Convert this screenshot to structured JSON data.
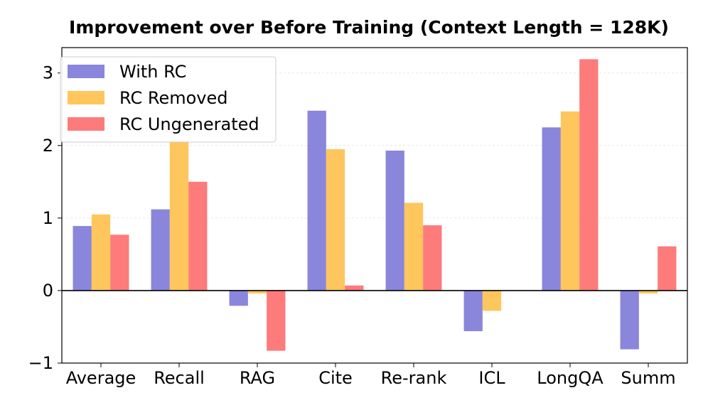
{
  "chart_data": {
    "type": "bar",
    "title": "Improvement over Before Training (Context Length = 128K)",
    "xlabel": "",
    "ylabel": "",
    "categories": [
      "Average",
      "Recall",
      "RAG",
      "Cite",
      "Re-rank",
      "ICL",
      "LongQA",
      "Summ"
    ],
    "series": [
      {
        "name": "With RC",
        "color": "#8a86db",
        "values": [
          0.89,
          1.12,
          -0.21,
          2.48,
          1.93,
          -0.56,
          2.25,
          -0.81
        ]
      },
      {
        "name": "RC Removed",
        "color": "#fec65d",
        "values": [
          1.05,
          2.07,
          -0.04,
          1.95,
          1.21,
          -0.28,
          2.47,
          -0.04
        ]
      },
      {
        "name": "RC Ungenerated",
        "color": "#fd7b7b",
        "values": [
          0.77,
          1.5,
          -0.83,
          0.07,
          0.9,
          0.0,
          3.19,
          0.61
        ]
      }
    ],
    "ylim": [
      -1.0,
      3.35
    ],
    "yticks": [
      -1,
      0,
      1,
      2,
      3
    ],
    "ytick_labels": [
      "−1",
      "0",
      "1",
      "2",
      "3"
    ],
    "grid": true,
    "legend_position": "top-left"
  }
}
